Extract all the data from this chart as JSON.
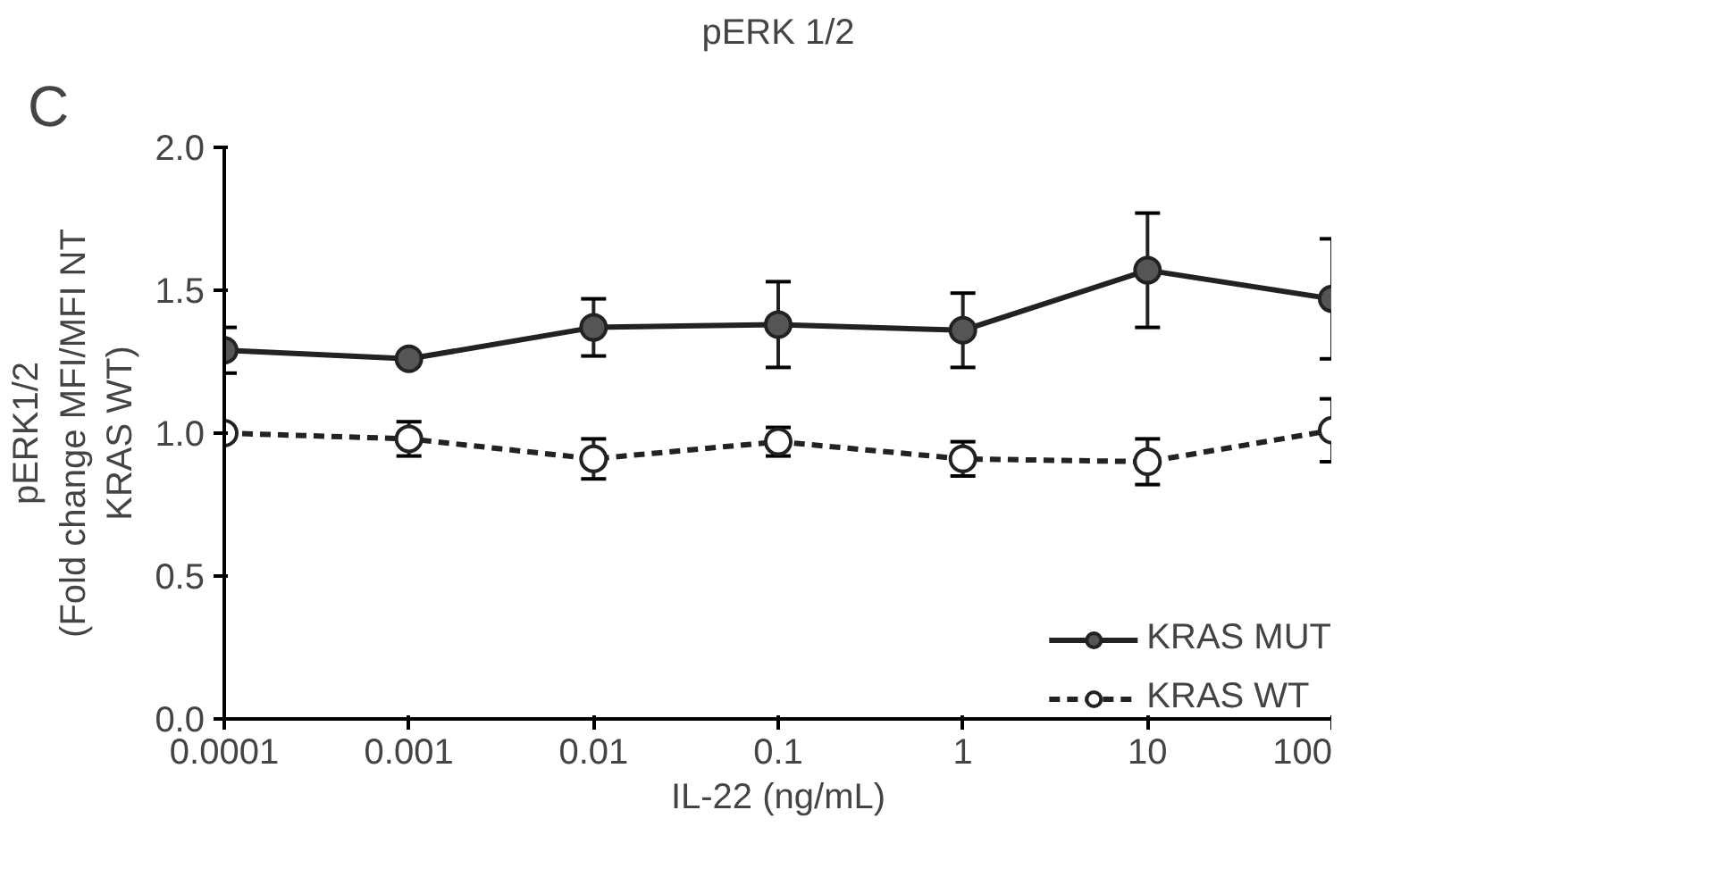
{
  "chart_data": {
    "type": "line",
    "title": "pERK 1/2",
    "xlabel": "IL-22 (ng/mL)",
    "ylabel": "pERK1/2\n(Fold change MFI/MFI NT\nKRAS WT)",
    "annotations": [
      "C"
    ],
    "x": [
      0.0001,
      0.001,
      0.01,
      0.1,
      1,
      10,
      100
    ],
    "log": "x",
    "xlim": [
      0.0001,
      100
    ],
    "xticks": [
      {
        "value": 0.0001,
        "label": "0.0001"
      },
      {
        "value": 0.001,
        "label": "0.001"
      },
      {
        "value": 0.01,
        "label": "0.01"
      },
      {
        "value": 0.1,
        "label": "0.1"
      },
      {
        "value": 1,
        "label": "1"
      },
      {
        "value": 10,
        "label": "10"
      },
      {
        "value": 100,
        "label": "100"
      }
    ],
    "ylim": [
      0,
      2
    ],
    "yticks": [
      {
        "value": 0,
        "label": "0.0"
      },
      {
        "value": 0.5,
        "label": "0.5"
      },
      {
        "value": 1,
        "label": "1.0"
      },
      {
        "value": 1.5,
        "label": "1.5"
      },
      {
        "value": 2,
        "label": "2.0"
      }
    ],
    "grid": false,
    "legend": "bottom right",
    "marker": "circle",
    "series": [
      {
        "name": "KRAS MUT",
        "color": "#555555",
        "line_style": "solid",
        "values": [
          1.29,
          1.26,
          1.37,
          1.38,
          1.36,
          1.57,
          1.47
        ],
        "errors": [
          0.08,
          null,
          0.1,
          0.15,
          0.13,
          0.2,
          0.21
        ]
      },
      {
        "name": "KRAS WT",
        "color": "#ffffff",
        "line_style": "dashed",
        "values": [
          1.0,
          0.98,
          0.91,
          0.97,
          0.91,
          0.9,
          1.01
        ],
        "errors": [
          null,
          0.06,
          0.07,
          0.05,
          0.06,
          0.08,
          0.11
        ]
      }
    ]
  }
}
